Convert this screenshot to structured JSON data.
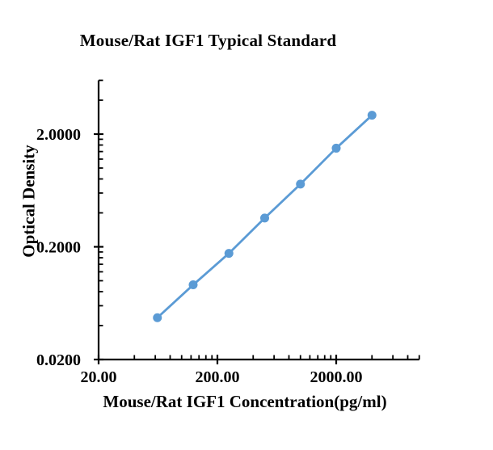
{
  "page": {
    "background_color": "#ffffff"
  },
  "chart_data": {
    "type": "line",
    "title": "Mouse/Rat IGF1 Typical Standard",
    "xlabel": "Mouse/Rat IGF1 Concentration(pg/ml)",
    "ylabel": "Optical Density",
    "x_scale": "log",
    "y_scale": "log",
    "x_range": [
      20,
      10000
    ],
    "y_range": [
      0.02,
      6
    ],
    "grid": false,
    "legend": "none",
    "series": [
      {
        "name": "Typical Standard",
        "x": [
          62.5,
          125,
          250,
          500,
          1000,
          2000,
          4000
        ],
        "y": [
          0.047,
          0.092,
          0.175,
          0.36,
          0.72,
          1.5,
          2.94
        ]
      }
    ],
    "x_major_ticks": [
      {
        "value": 20,
        "label": "20.00"
      },
      {
        "value": 200,
        "label": "200.00"
      },
      {
        "value": 2000,
        "label": "2000.00"
      }
    ],
    "y_major_ticks": [
      {
        "value": 2,
        "label": "2.0000"
      },
      {
        "value": 0.2,
        "label": "0.2000"
      },
      {
        "value": 0.02,
        "label": "0.0200"
      }
    ],
    "x_minor_ticks": [
      40,
      60,
      80,
      100,
      120,
      140,
      160,
      180,
      400,
      600,
      800,
      1000,
      1200,
      1400,
      1600,
      1800,
      4000,
      6000,
      8000,
      10000
    ],
    "y_minor_ticks": [
      6,
      4,
      1.8,
      1.6,
      1.4,
      1.2,
      1.0,
      0.8,
      0.6,
      0.4,
      0.18,
      0.16,
      0.14,
      0.12,
      0.1,
      0.08,
      0.06,
      0.04
    ],
    "line_color": "#5B9BD5",
    "marker_color": "#5B9BD5",
    "axis_color": "#000000",
    "text_color": "#000000"
  }
}
